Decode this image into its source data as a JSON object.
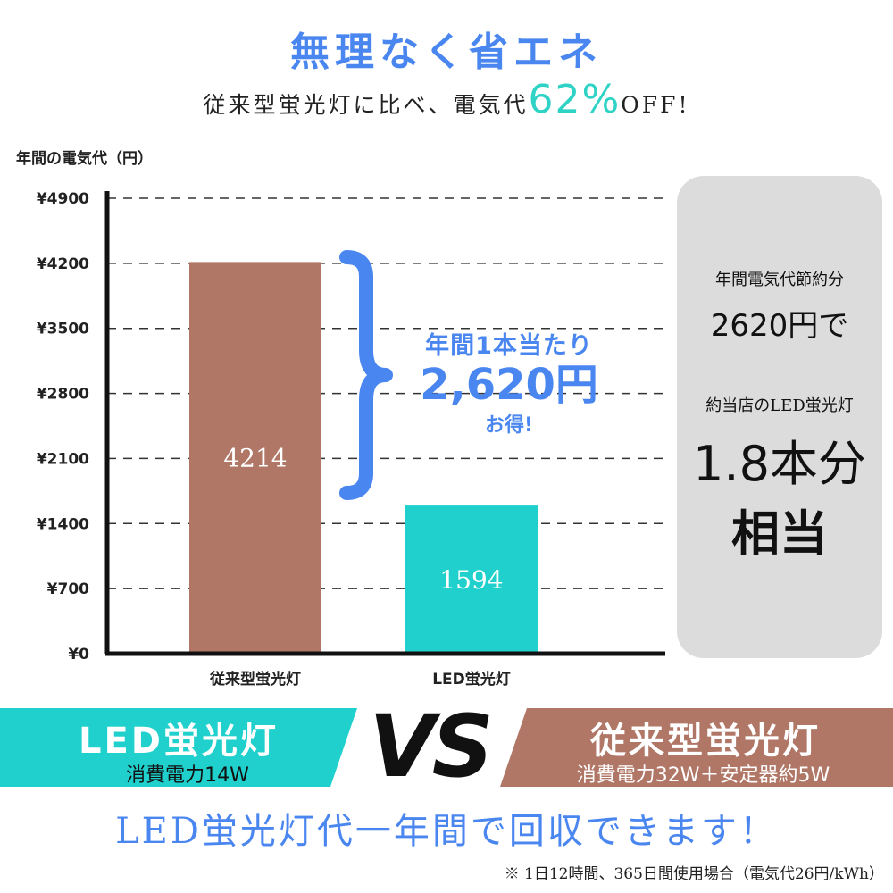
{
  "header": {
    "title": "無理なく省エネ",
    "subtitle_prefix": "従来型蛍光灯に比べ、電気代",
    "subtitle_percent": "62%",
    "subtitle_suffix": "OFF!"
  },
  "chart_data": {
    "type": "bar",
    "ylabel": "年間の電気代（円）",
    "categories": [
      "従来型蛍光灯",
      "LED蛍光灯"
    ],
    "values": [
      4214,
      1594
    ],
    "data_labels": [
      "4214",
      "1594"
    ],
    "bar_colors": [
      "#b07666",
      "#1fd0cc"
    ],
    "ylim": [
      0,
      4900
    ],
    "yticks": [
      0,
      700,
      1400,
      2100,
      2800,
      3500,
      4200,
      4900
    ],
    "ytick_labels": [
      "¥0",
      "¥700",
      "¥1400",
      "¥2100",
      "¥2800",
      "¥3500",
      "¥4200",
      "¥4900"
    ],
    "grid": "dashed horizontal",
    "legend": "none"
  },
  "callout": {
    "line1": "年間1本当たり",
    "line2": "2,620円",
    "line3": "お得!"
  },
  "side_panel": {
    "line1": "年間電気代節約分",
    "line2": "2620円で",
    "line3": "約当店のLED蛍光灯",
    "line4": "1.8本分",
    "line5": "相当"
  },
  "comparison": {
    "left_title": "LED蛍光灯",
    "left_power": "消費電力14W",
    "vs": "VS",
    "right_title": "従来型蛍光灯",
    "right_power": "消費電力32W＋安定器約5W"
  },
  "footer": {
    "headline": "LED蛍光灯代一年間で回収できます！",
    "note": "※ 1日12時間、365日間使用場合（電気代26円/kWh）"
  },
  "colors": {
    "accent_blue": "#4a86f0",
    "accent_teal": "#2fd3c6",
    "led_teal": "#1fd0cc",
    "old_brown": "#b07666",
    "panel_gray": "#dcdcdc"
  }
}
